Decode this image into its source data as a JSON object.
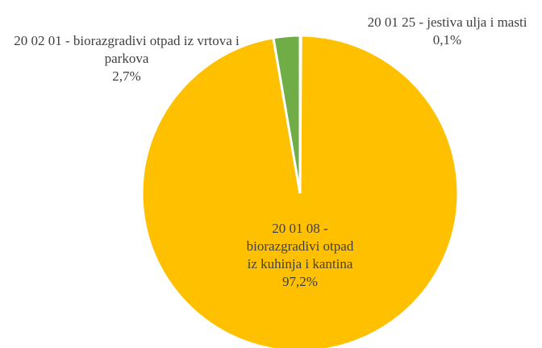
{
  "chart_data": {
    "type": "pie",
    "categories": [
      "20 01 25 - jestiva ulja i masti",
      "20 01 08 - biorazgradivi otpad iz kuhinja i kantina",
      "20 02 01 - biorazgradivi otpad iz vrtova i parkova"
    ],
    "values": [
      0.1,
      97.2,
      2.7
    ],
    "value_labels": [
      "0,1%",
      "97,2%",
      "2,7%"
    ],
    "colors": [
      "#4472c4",
      "#ffc000",
      "#70ad47"
    ]
  }
}
